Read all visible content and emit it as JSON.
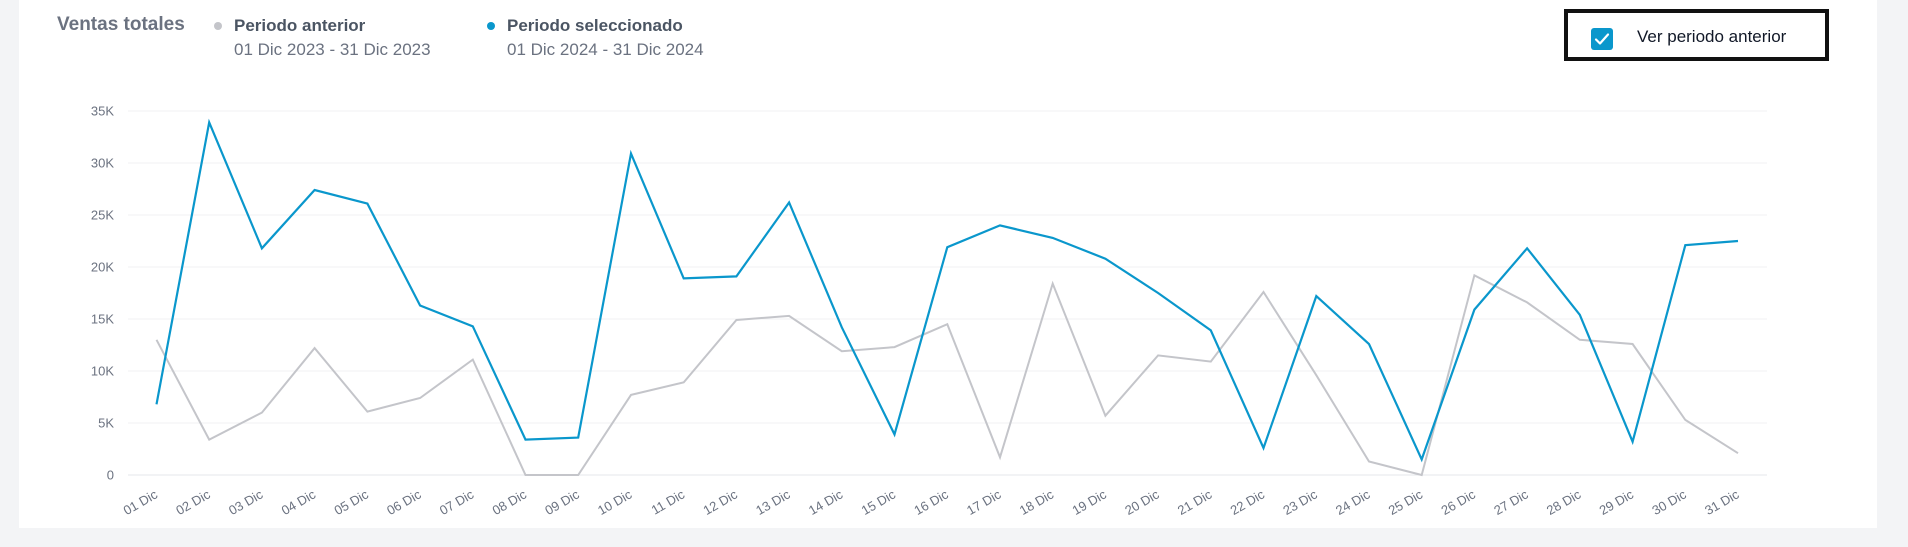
{
  "header": {
    "title": "Ventas totales"
  },
  "legend": [
    {
      "name": "Periodo anterior",
      "range": "01 Dic 2023 - 31 Dic 2023",
      "color": "#c4c5ca"
    },
    {
      "name": "Periodo seleccionado",
      "range": "01 Dic 2024 - 31 Dic 2024",
      "color": "#0a97cc"
    }
  ],
  "toggle": {
    "label": "Ver periodo anterior",
    "checked": true,
    "color": "#0a97cc"
  },
  "chart_data": {
    "type": "line",
    "title": "Ventas totales",
    "xlabel": "",
    "ylabel": "",
    "ylim": [
      0,
      35000
    ],
    "y_ticks": [
      0,
      5000,
      10000,
      15000,
      20000,
      25000,
      30000,
      35000
    ],
    "y_tick_labels": [
      "0",
      "5K",
      "10K",
      "15K",
      "20K",
      "25K",
      "30K",
      "35K"
    ],
    "grid": true,
    "legend_position": "top-left",
    "categories": [
      "01 Dic",
      "02 Dic",
      "03 Dic",
      "04 Dic",
      "05 Dic",
      "06 Dic",
      "07 Dic",
      "08 Dic",
      "09 Dic",
      "10 Dic",
      "11 Dic",
      "12 Dic",
      "13 Dic",
      "14 Dic",
      "15 Dic",
      "16 Dic",
      "17 Dic",
      "18 Dic",
      "19 Dic",
      "20 Dic",
      "21 Dic",
      "22 Dic",
      "23 Dic",
      "24 Dic",
      "25 Dic",
      "26 Dic",
      "27 Dic",
      "28 Dic",
      "29 Dic",
      "30 Dic",
      "31 Dic"
    ],
    "series": [
      {
        "name": "Periodo anterior",
        "color": "#c4c5ca",
        "values": [
          13000,
          3400,
          6000,
          12200,
          6100,
          7400,
          11100,
          0,
          0,
          7700,
          8900,
          14900,
          15300,
          11900,
          12300,
          14500,
          1700,
          18400,
          5700,
          11500,
          10900,
          17600,
          9600,
          1300,
          0,
          19200,
          16600,
          13000,
          12600,
          5300,
          2100
        ]
      },
      {
        "name": "Periodo seleccionado",
        "color": "#0a97cc",
        "values": [
          6800,
          33900,
          21800,
          27400,
          26100,
          16300,
          14300,
          3400,
          3600,
          30900,
          18900,
          19100,
          26200,
          14200,
          3900,
          21900,
          24000,
          22800,
          20800,
          17500,
          13900,
          2600,
          17200,
          12600,
          1500,
          15900,
          21800,
          15400,
          3200,
          22100,
          22500
        ]
      }
    ]
  }
}
